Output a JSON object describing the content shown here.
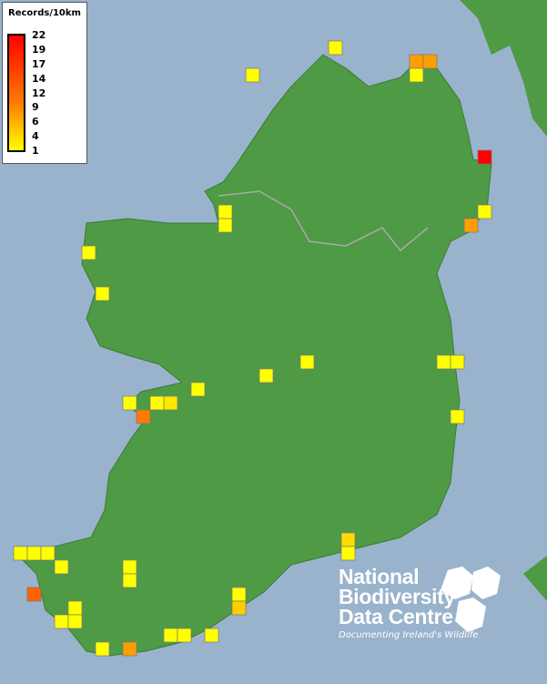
{
  "legend": {
    "title": "Records/10km",
    "ticks": [
      "22",
      "19",
      "17",
      "14",
      "12",
      "9",
      "6",
      "4",
      "1"
    ],
    "colors": {
      "max": "#ff0000",
      "mid": "#ff8000",
      "min": "#ffff00"
    }
  },
  "map": {
    "sea_color": "#99b3cc",
    "land_color": "#4f9a45",
    "records": [
      1,
      1,
      9,
      9,
      1,
      22,
      1,
      9,
      1,
      1,
      1,
      1,
      1,
      1,
      1,
      1,
      1,
      1,
      1,
      3,
      12,
      1,
      4,
      1,
      1,
      1,
      1,
      1,
      1,
      1,
      14,
      1,
      5,
      1,
      1,
      1,
      1,
      1,
      1,
      1,
      9
    ]
  },
  "logo": {
    "line1": "National",
    "line2": "Biodiversity",
    "line3": "Data Centre",
    "tagline": "Documenting Ireland's Wildlife"
  }
}
